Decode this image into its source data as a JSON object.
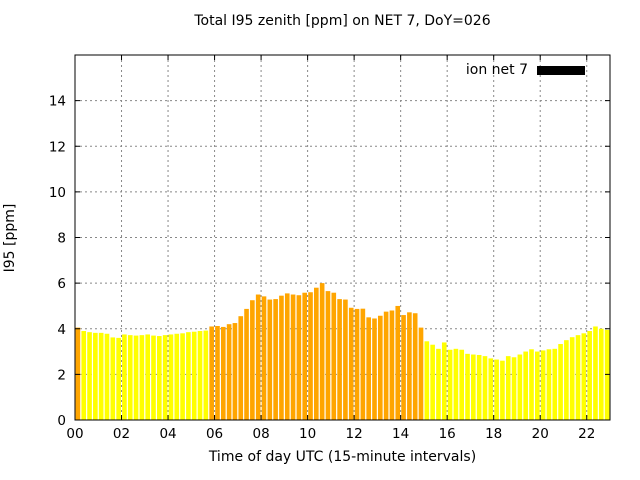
{
  "title": "Total I95 zenith [ppm] on NET 7, DoY=026",
  "legend": {
    "label": "ion net 7",
    "swatch_color": "#000000"
  },
  "axes": {
    "x_label": "Time of day UTC (15-minute intervals)",
    "y_label": "I95 [ppm]",
    "x_tick_hours": [
      0,
      2,
      4,
      6,
      8,
      10,
      12,
      14,
      16,
      18,
      20,
      22
    ],
    "x_tick_labels": [
      "00",
      "02",
      "04",
      "06",
      "08",
      "10",
      "12",
      "14",
      "16",
      "18",
      "20",
      "22"
    ],
    "y_ticks": [
      0,
      2,
      4,
      6,
      8,
      10,
      12,
      14
    ],
    "x_range_hours": [
      0,
      23
    ],
    "y_range": [
      0,
      16
    ],
    "grid": true,
    "grid_color": "#888888",
    "box_color": "#000000"
  },
  "chart_data": {
    "type": "bar",
    "title": "Total I95 zenith [ppm] on NET 7, DoY=026",
    "xlabel": "Time of day UTC (15-minute intervals)",
    "ylabel": "I95 [ppm]",
    "ylim": [
      0,
      16
    ],
    "series_name": "ion net 7",
    "interval_minutes": 15,
    "palette": {
      "yellow": "#ffff00",
      "orange": "#ffa500"
    },
    "times": [
      "00:00",
      "00:15",
      "00:30",
      "00:45",
      "01:00",
      "01:15",
      "01:30",
      "01:45",
      "02:00",
      "02:15",
      "02:30",
      "02:45",
      "03:00",
      "03:15",
      "03:30",
      "03:45",
      "04:00",
      "04:15",
      "04:30",
      "04:45",
      "05:00",
      "05:15",
      "05:30",
      "05:45",
      "06:00",
      "06:15",
      "06:30",
      "06:45",
      "07:00",
      "07:15",
      "07:30",
      "07:45",
      "08:00",
      "08:15",
      "08:30",
      "08:45",
      "09:00",
      "09:15",
      "09:30",
      "09:45",
      "10:00",
      "10:15",
      "10:30",
      "10:45",
      "11:00",
      "11:15",
      "11:30",
      "11:45",
      "12:00",
      "12:15",
      "12:30",
      "12:45",
      "13:00",
      "13:15",
      "13:30",
      "13:45",
      "14:00",
      "14:15",
      "14:30",
      "14:45",
      "15:00",
      "15:15",
      "15:30",
      "15:45",
      "16:00",
      "16:15",
      "16:30",
      "16:45",
      "17:00",
      "17:15",
      "17:30",
      "17:45",
      "18:00",
      "18:15",
      "18:30",
      "18:45",
      "19:00",
      "19:15",
      "19:30",
      "19:45",
      "20:00",
      "20:15",
      "20:30",
      "20:45",
      "21:00",
      "21:15",
      "21:30",
      "21:45",
      "22:00",
      "22:15",
      "22:30",
      "22:45"
    ],
    "values": [
      4.05,
      3.9,
      3.85,
      3.82,
      3.82,
      3.78,
      3.62,
      3.6,
      3.75,
      3.72,
      3.7,
      3.72,
      3.75,
      3.7,
      3.68,
      3.72,
      3.75,
      3.78,
      3.8,
      3.85,
      3.87,
      3.9,
      3.92,
      4.1,
      4.12,
      4.08,
      4.2,
      4.25,
      4.55,
      4.87,
      5.25,
      5.5,
      5.42,
      5.28,
      5.3,
      5.45,
      5.55,
      5.5,
      5.47,
      5.58,
      5.6,
      5.8,
      6.0,
      5.65,
      5.58,
      5.3,
      5.28,
      4.92,
      4.87,
      4.88,
      4.5,
      4.45,
      4.57,
      4.75,
      4.8,
      5.0,
      4.6,
      4.72,
      4.68,
      4.05,
      3.45,
      3.3,
      3.12,
      3.4,
      3.08,
      3.12,
      3.08,
      2.9,
      2.87,
      2.85,
      2.8,
      2.7,
      2.65,
      2.6,
      2.8,
      2.75,
      2.87,
      3.0,
      3.1,
      3.0,
      3.05,
      3.1,
      3.12,
      3.33,
      3.5,
      3.63,
      3.72,
      3.8,
      3.9,
      4.1,
      4.0,
      3.95
    ],
    "colors": [
      "orange",
      "yellow",
      "yellow",
      "yellow",
      "yellow",
      "yellow",
      "yellow",
      "yellow",
      "yellow",
      "yellow",
      "yellow",
      "yellow",
      "yellow",
      "yellow",
      "yellow",
      "yellow",
      "yellow",
      "yellow",
      "yellow",
      "yellow",
      "yellow",
      "yellow",
      "yellow",
      "orange",
      "orange",
      "orange",
      "orange",
      "orange",
      "orange",
      "orange",
      "orange",
      "orange",
      "orange",
      "orange",
      "orange",
      "orange",
      "orange",
      "orange",
      "orange",
      "orange",
      "orange",
      "orange",
      "orange",
      "orange",
      "orange",
      "orange",
      "orange",
      "orange",
      "orange",
      "orange",
      "orange",
      "orange",
      "orange",
      "orange",
      "orange",
      "orange",
      "orange",
      "orange",
      "orange",
      "orange",
      "yellow",
      "yellow",
      "yellow",
      "yellow",
      "yellow",
      "yellow",
      "yellow",
      "yellow",
      "yellow",
      "yellow",
      "yellow",
      "yellow",
      "yellow",
      "yellow",
      "yellow",
      "yellow",
      "yellow",
      "yellow",
      "yellow",
      "yellow",
      "yellow",
      "yellow",
      "yellow",
      "yellow",
      "yellow",
      "yellow",
      "yellow",
      "yellow",
      "yellow",
      "yellow",
      "yellow",
      "yellow"
    ]
  }
}
